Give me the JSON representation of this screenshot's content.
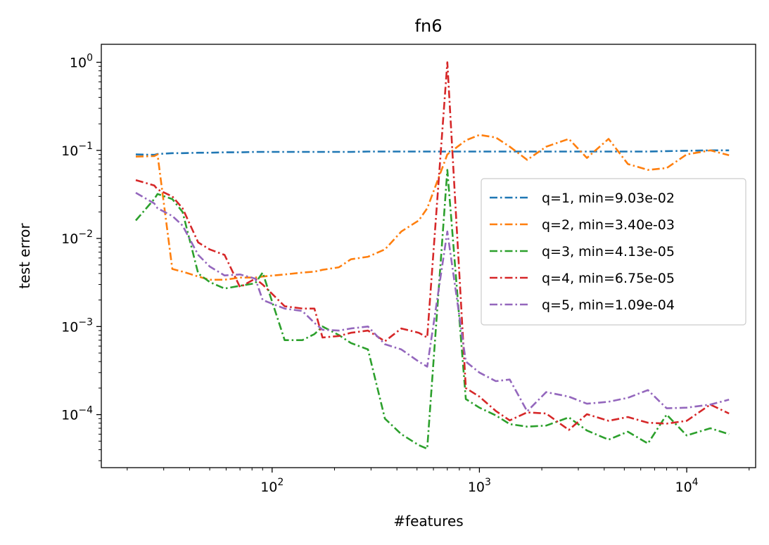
{
  "chart_data": {
    "type": "line",
    "title": "fn6",
    "xlabel": "#features",
    "ylabel": "test error",
    "x_scale": "log",
    "y_scale": "log",
    "xlim": [
      15,
      21500
    ],
    "ylim": [
      2.5e-05,
      1.6
    ],
    "x_ticks": [
      {
        "value": 100,
        "base": "10",
        "exp": "2"
      },
      {
        "value": 1000,
        "base": "10",
        "exp": "3"
      },
      {
        "value": 10000,
        "base": "10",
        "exp": "4"
      }
    ],
    "y_ticks": [
      {
        "value": 1,
        "base": "10",
        "exp": "0"
      },
      {
        "value": 0.1,
        "base": "10",
        "exp": "−1"
      },
      {
        "value": 0.01,
        "base": "10",
        "exp": "−2"
      },
      {
        "value": 0.001,
        "base": "10",
        "exp": "−3"
      },
      {
        "value": 0.0001,
        "base": "10",
        "exp": "−4"
      }
    ],
    "grid": false,
    "legend_position": "center-right",
    "x": [
      22,
      27,
      28,
      33,
      37,
      44,
      50,
      59,
      70,
      83,
      90,
      115,
      140,
      160,
      175,
      210,
      240,
      290,
      350,
      420,
      510,
      560,
      700,
      860,
      1000,
      1200,
      1400,
      1700,
      2100,
      2700,
      3300,
      4200,
      5200,
      6500,
      8000,
      10000,
      13000,
      16000
    ],
    "series": [
      {
        "name": "q=1, min=9.03e-02",
        "color": "#1f77b4",
        "values": [
          0.09,
          0.089,
          0.091,
          0.093,
          0.093,
          0.094,
          0.094,
          0.095,
          0.095,
          0.096,
          0.096,
          0.096,
          0.096,
          0.096,
          0.096,
          0.096,
          0.096,
          0.097,
          0.097,
          0.097,
          0.097,
          0.097,
          0.097,
          0.097,
          0.097,
          0.097,
          0.097,
          0.097,
          0.097,
          0.097,
          0.097,
          0.097,
          0.097,
          0.097,
          0.098,
          0.099,
          0.1,
          0.1
        ]
      },
      {
        "name": "q=2, min=3.40e-03",
        "color": "#ff7f0e",
        "values": [
          0.085,
          0.086,
          0.09,
          0.0045,
          0.0042,
          0.0037,
          0.0034,
          0.0034,
          0.0036,
          0.0036,
          0.0037,
          0.0039,
          0.0041,
          0.0042,
          0.0044,
          0.0047,
          0.0058,
          0.0062,
          0.0075,
          0.012,
          0.016,
          0.022,
          0.09,
          0.13,
          0.15,
          0.14,
          0.11,
          0.078,
          0.11,
          0.135,
          0.082,
          0.135,
          0.07,
          0.06,
          0.063,
          0.09,
          0.1,
          0.088
        ]
      },
      {
        "name": "q=3, min=4.13e-05",
        "color": "#2ca02c",
        "values": [
          0.016,
          0.028,
          0.032,
          0.028,
          0.02,
          0.004,
          0.0032,
          0.0027,
          0.0029,
          0.0031,
          0.0041,
          0.0007,
          0.0007,
          0.00082,
          0.001,
          0.0008,
          0.00065,
          0.00055,
          9e-05,
          6e-05,
          4.5e-05,
          4.1e-05,
          0.06,
          0.00015,
          0.00012,
          9.8e-05,
          7.8e-05,
          7.3e-05,
          7.5e-05,
          9.3e-05,
          6.6e-05,
          5.2e-05,
          6.4e-05,
          4.7e-05,
          0.0001,
          5.8e-05,
          7e-05,
          6e-05
        ]
      },
      {
        "name": "q=4, min=6.75e-05",
        "color": "#d62728",
        "values": [
          0.046,
          0.04,
          0.036,
          0.03,
          0.022,
          0.009,
          0.0075,
          0.0065,
          0.0028,
          0.0035,
          0.003,
          0.0017,
          0.0016,
          0.0016,
          0.00075,
          0.00078,
          0.00085,
          0.0009,
          0.00068,
          0.00095,
          0.00085,
          0.00075,
          1.0,
          0.0002,
          0.00016,
          0.00011,
          8.6e-05,
          0.000106,
          0.000103,
          6.7e-05,
          0.000101,
          8.5e-05,
          9.4e-05,
          8.1e-05,
          7.9e-05,
          8.5e-05,
          0.00013,
          0.000103
        ]
      },
      {
        "name": "q=5, min=1.09e-04",
        "color": "#9467bd",
        "values": [
          0.033,
          0.025,
          0.022,
          0.018,
          0.014,
          0.0065,
          0.0048,
          0.0038,
          0.0039,
          0.0035,
          0.002,
          0.0016,
          0.0015,
          0.0011,
          0.00092,
          0.0009,
          0.00095,
          0.001,
          0.00063,
          0.00055,
          0.0004,
          0.00035,
          0.012,
          0.0004,
          0.0003,
          0.00024,
          0.00025,
          0.000109,
          0.00018,
          0.00016,
          0.000133,
          0.00014,
          0.000155,
          0.00019,
          0.000118,
          0.00012,
          0.00013,
          0.000148
        ]
      }
    ]
  }
}
